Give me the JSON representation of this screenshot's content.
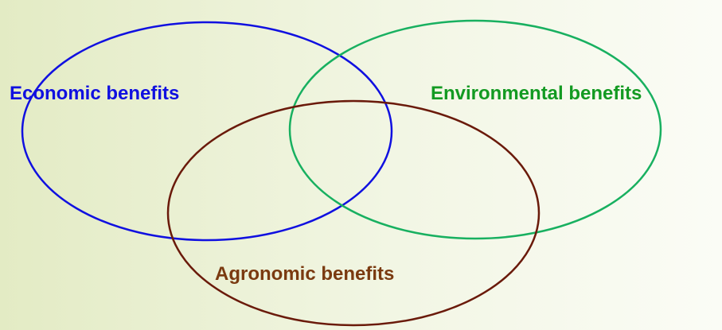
{
  "diagram": {
    "sets": [
      {
        "label": "Economic benefits"
      },
      {
        "label": "Environmental benefits"
      },
      {
        "label": "Agronomic benefits"
      }
    ]
  }
}
